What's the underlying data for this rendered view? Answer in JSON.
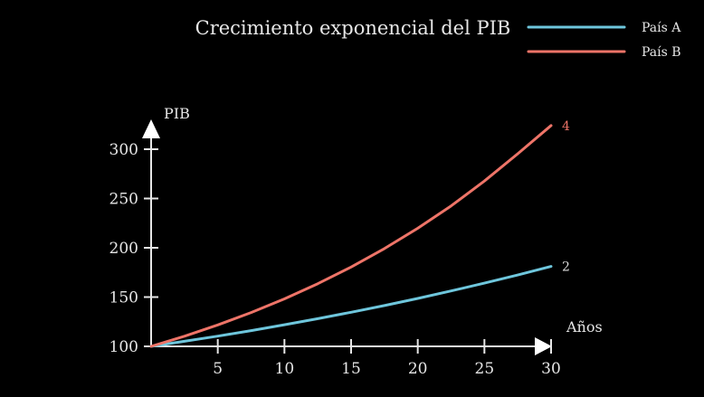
{
  "chart_data": {
    "type": "line",
    "title": "Crecimiento exponencial del PIB",
    "xlabel": "Años",
    "ylabel": "PIB",
    "xlim": [
      0,
      30
    ],
    "ylim": [
      100,
      320
    ],
    "x_ticks": [
      5,
      10,
      15,
      20,
      25,
      30
    ],
    "y_ticks": [
      100,
      150,
      200,
      250,
      300
    ],
    "grid": false,
    "legend_position": "top-right",
    "x": [
      0,
      2.5,
      5,
      7.5,
      10,
      12.5,
      15,
      17.5,
      20,
      22.5,
      25,
      27.5,
      30
    ],
    "series": [
      {
        "name": "País A",
        "color": "#6ec6dc",
        "values": [
          100,
          105.1,
          110.4,
          116.0,
          121.9,
          128.1,
          134.6,
          141.4,
          148.6,
          156.2,
          164.1,
          172.4,
          181.1
        ],
        "end_label": "2"
      },
      {
        "name": "País B",
        "color": "#ee7468",
        "values": [
          100,
          110.3,
          121.7,
          134.3,
          148.2,
          163.6,
          180.5,
          199.2,
          219.8,
          242.5,
          267.7,
          295.4,
          324.0
        ],
        "end_label": "4"
      }
    ]
  }
}
